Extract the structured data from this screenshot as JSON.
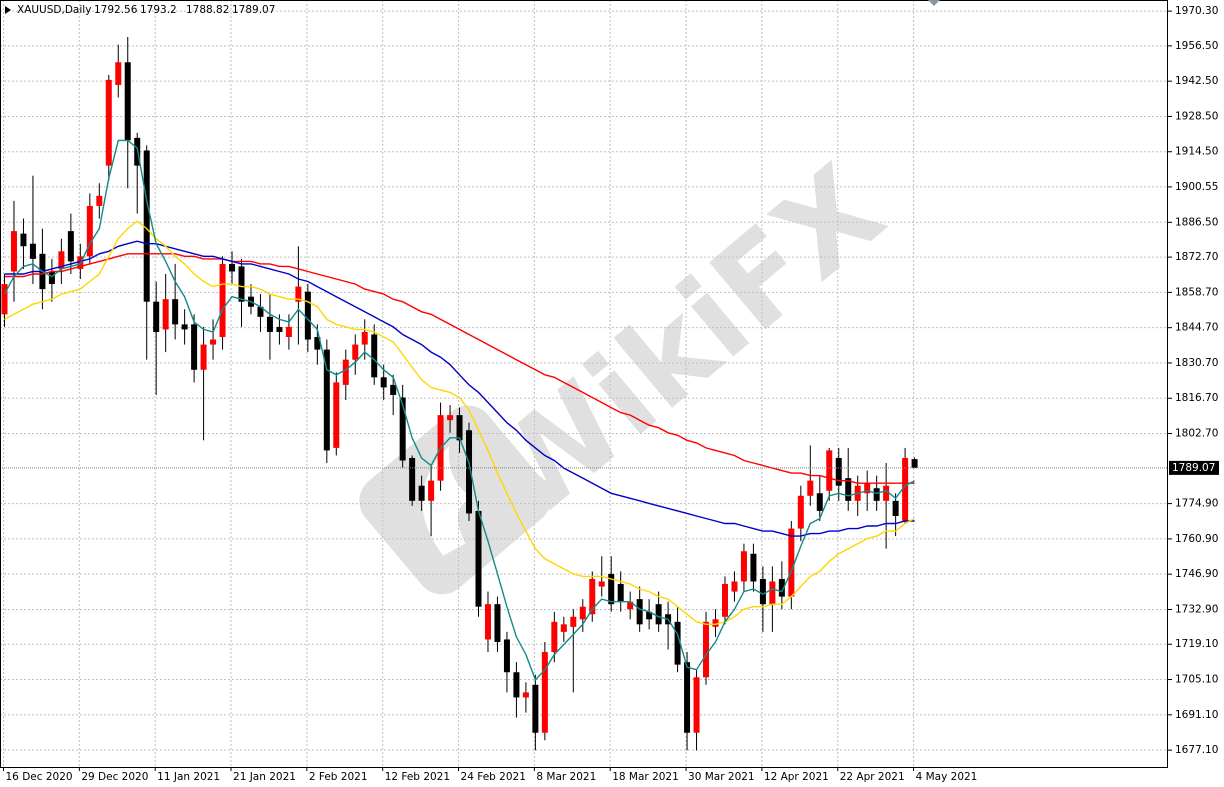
{
  "chart_data": {
    "type": "candlestick",
    "title": "XAUUSD,Daily",
    "watermark": "WikiFX",
    "categories": [
      "16 Dec 2020",
      null,
      null,
      null,
      null,
      null,
      null,
      null,
      "29 Dec 2020",
      null,
      null,
      null,
      null,
      null,
      null,
      null,
      "11 Jan 2021",
      null,
      null,
      null,
      null,
      null,
      null,
      null,
      "21 Jan 2021",
      null,
      null,
      null,
      null,
      null,
      null,
      null,
      "2 Feb 2021",
      null,
      null,
      null,
      null,
      null,
      null,
      null,
      "12 Feb 2021",
      null,
      null,
      null,
      null,
      null,
      null,
      null,
      "24 Feb 2021",
      null,
      null,
      null,
      null,
      null,
      null,
      null,
      "8 Mar 2021",
      null,
      null,
      null,
      null,
      null,
      null,
      null,
      "18 Mar 2021",
      null,
      null,
      null,
      null,
      null,
      null,
      null,
      "30 Mar 2021",
      null,
      null,
      null,
      null,
      null,
      null,
      null,
      "12 Apr 2021",
      null,
      null,
      null,
      null,
      null,
      null,
      null,
      "22 Apr 2021",
      null,
      null,
      null,
      null,
      null,
      null,
      null,
      "4 May 2021"
    ],
    "open": [
      1850,
      1867,
      1882,
      1878,
      1874,
      1867,
      1868,
      1883,
      1868,
      1873,
      1893,
      1909,
      1941,
      1950,
      1920,
      1915,
      1855,
      1844,
      1856,
      1846,
      1846,
      1828,
      1838,
      1841,
      1870,
      1869,
      1857,
      1853,
      1849,
      1845,
      1841,
      1855,
      1859,
      1841,
      1836,
      1797,
      1822,
      1832,
      1838,
      1842,
      1825,
      1822,
      1817,
      1793,
      1782,
      1776,
      1784,
      1808,
      1810,
      1804,
      1772,
      1721,
      1735,
      1721,
      1708,
      1698,
      1703,
      1684,
      1716,
      1724,
      1726,
      1729,
      1731,
      1742,
      1747,
      1743,
      1733,
      1737,
      1732,
      1735,
      1731,
      1728,
      1712,
      1684,
      1706,
      1726,
      1730,
      1740,
      1744,
      1755,
      1745,
      1735,
      1745,
      1738,
      1765,
      1778,
      1779,
      1780,
      1793,
      1785,
      1776,
      1779,
      1781,
      1776,
      1776,
      1768,
      1792.56
    ],
    "high": [
      1866,
      1895,
      1888,
      1905,
      1884,
      1872,
      1880,
      1890,
      1878,
      1898,
      1902,
      1945,
      1957,
      1960,
      1922,
      1917,
      1863,
      1866,
      1870,
      1852,
      1850,
      1845,
      1848,
      1873,
      1875,
      1872,
      1862,
      1858,
      1858,
      1850,
      1850,
      1877,
      1862,
      1846,
      1840,
      1827,
      1836,
      1842,
      1848,
      1846,
      1830,
      1826,
      1822,
      1794,
      1786,
      1790,
      1815,
      1814,
      1813,
      1807,
      1776,
      1740,
      1738,
      1724,
      1712,
      1704,
      1707,
      1720,
      1732,
      1730,
      1733,
      1737,
      1748,
      1754,
      1754,
      1748,
      1740,
      1742,
      1737,
      1740,
      1736,
      1734,
      1716,
      1709,
      1732,
      1733,
      1746,
      1748,
      1759,
      1759,
      1750,
      1750,
      1752,
      1768,
      1782,
      1798,
      1786,
      1797,
      1797,
      1797,
      1786,
      1788,
      1786,
      1791,
      1779,
      1797,
      1793.2
    ],
    "low": [
      1845,
      1855,
      1868,
      1862,
      1852,
      1855,
      1862,
      1866,
      1864,
      1870,
      1888,
      1903,
      1936,
      1900,
      1890,
      1832,
      1818,
      1835,
      1840,
      1838,
      1823,
      1800,
      1832,
      1836,
      1862,
      1845,
      1850,
      1843,
      1832,
      1838,
      1836,
      1838,
      1835,
      1830,
      1791,
      1794,
      1816,
      1826,
      1832,
      1822,
      1816,
      1810,
      1789,
      1774,
      1772,
      1762,
      1780,
      1803,
      1795,
      1768,
      1730,
      1716,
      1716,
      1700,
      1690,
      1692,
      1677,
      1681,
      1712,
      1720,
      1700,
      1724,
      1728,
      1738,
      1732,
      1732,
      1729,
      1724,
      1725,
      1724,
      1717,
      1708,
      1677,
      1677,
      1703,
      1722,
      1727,
      1736,
      1740,
      1740,
      1724,
      1724,
      1733,
      1733,
      1760,
      1774,
      1768,
      1776,
      1776,
      1772,
      1770,
      1772,
      1772,
      1757,
      1762,
      1767,
      1788.82
    ],
    "close": [
      1862,
      1883,
      1877,
      1872,
      1860,
      1862,
      1875,
      1871,
      1873,
      1893,
      1897,
      1943,
      1950,
      1919,
      1909,
      1855,
      1843,
      1856,
      1846,
      1844,
      1828,
      1838,
      1840,
      1870,
      1867,
      1855,
      1853,
      1849,
      1843,
      1843,
      1845,
      1861,
      1840,
      1836,
      1796,
      1823,
      1832,
      1838,
      1843,
      1825,
      1821,
      1818,
      1792,
      1776,
      1776,
      1784,
      1810,
      1810,
      1800,
      1771,
      1734,
      1735,
      1720,
      1708,
      1698,
      1700,
      1684,
      1716,
      1728,
      1727,
      1730,
      1734,
      1745,
      1744,
      1735,
      1736,
      1736,
      1727,
      1729,
      1727,
      1727,
      1711,
      1684,
      1706,
      1728,
      1729,
      1743,
      1744,
      1756,
      1744,
      1735,
      1744,
      1738,
      1765,
      1778,
      1784,
      1772,
      1796,
      1782,
      1776,
      1782,
      1783,
      1776,
      1782,
      1770,
      1793,
      1789.07
    ],
    "up_color": "#ff0000",
    "down_color": "#000000",
    "lines": [
      {
        "color": "#ff0000",
        "values": [
          1865,
          1865,
          1865,
          1866,
          1866,
          1867,
          1867,
          1868,
          1869,
          1870,
          1871,
          1872,
          1873,
          1874,
          1874,
          1874,
          1874,
          1874,
          1874,
          1873,
          1873,
          1872,
          1872,
          1872,
          1871,
          1871,
          1871,
          1870,
          1870,
          1869,
          1869,
          1868,
          1867,
          1866,
          1865,
          1864,
          1863,
          1862,
          1860,
          1859,
          1858,
          1856,
          1855,
          1853,
          1851,
          1850,
          1848,
          1846,
          1844,
          1842,
          1840,
          1838,
          1836,
          1834,
          1832,
          1830,
          1828,
          1826,
          1825,
          1823,
          1821,
          1819,
          1817,
          1815,
          1813,
          1811,
          1810,
          1808,
          1806,
          1805,
          1803,
          1802,
          1800,
          1799,
          1797,
          1796,
          1795,
          1794,
          1792,
          1791,
          1790,
          1789,
          1788,
          1787,
          1787,
          1786,
          1786,
          1785,
          1784,
          1784,
          1783,
          1783,
          1783,
          1783,
          1783,
          1783,
          1783
        ]
      },
      {
        "color": "#0000c8",
        "values": [
          1866,
          1866,
          1866,
          1867,
          1867,
          1868,
          1869,
          1870,
          1871,
          1872,
          1874,
          1875,
          1877,
          1878,
          1879,
          1878,
          1878,
          1877,
          1876,
          1875,
          1874,
          1873,
          1873,
          1872,
          1871,
          1870,
          1870,
          1869,
          1868,
          1867,
          1866,
          1864,
          1863,
          1861,
          1859,
          1857,
          1855,
          1853,
          1851,
          1849,
          1847,
          1845,
          1842,
          1840,
          1838,
          1835,
          1833,
          1830,
          1826,
          1822,
          1819,
          1815,
          1811,
          1807,
          1804,
          1800,
          1797,
          1794,
          1792,
          1789,
          1787,
          1785,
          1783,
          1781,
          1779,
          1778,
          1777,
          1776,
          1775,
          1774,
          1773,
          1772,
          1771,
          1770,
          1769,
          1768,
          1767,
          1767,
          1766,
          1765,
          1764,
          1764,
          1763,
          1762,
          1762,
          1763,
          1763,
          1764,
          1764,
          1765,
          1765,
          1766,
          1766,
          1767,
          1767,
          1768,
          1768
        ]
      },
      {
        "color": "#ffd700",
        "values": [
          1848,
          1850,
          1852,
          1854,
          1855,
          1856,
          1858,
          1859,
          1860,
          1863,
          1866,
          1873,
          1880,
          1884,
          1887,
          1884,
          1880,
          1877,
          1873,
          1870,
          1866,
          1863,
          1861,
          1862,
          1862,
          1861,
          1861,
          1860,
          1858,
          1857,
          1856,
          1856,
          1855,
          1853,
          1848,
          1846,
          1845,
          1844,
          1844,
          1843,
          1841,
          1839,
          1834,
          1829,
          1824,
          1821,
          1820,
          1819,
          1817,
          1812,
          1804,
          1796,
          1787,
          1779,
          1771,
          1764,
          1757,
          1753,
          1751,
          1749,
          1747,
          1746,
          1746,
          1746,
          1745,
          1744,
          1743,
          1741,
          1740,
          1738,
          1737,
          1734,
          1731,
          1728,
          1727,
          1727,
          1728,
          1730,
          1733,
          1734,
          1734,
          1735,
          1735,
          1738,
          1742,
          1746,
          1748,
          1752,
          1755,
          1757,
          1759,
          1761,
          1762,
          1764,
          1764,
          1767,
          1769
        ]
      },
      {
        "color": "#138a8a",
        "values": [
          1858,
          1865,
          1869,
          1870,
          1867,
          1865,
          1868,
          1869,
          1870,
          1878,
          1884,
          1904,
          1919,
          1919,
          1916,
          1895,
          1878,
          1871,
          1863,
          1857,
          1847,
          1844,
          1843,
          1852,
          1857,
          1856,
          1855,
          1853,
          1850,
          1848,
          1847,
          1852,
          1848,
          1844,
          1828,
          1826,
          1828,
          1831,
          1835,
          1832,
          1828,
          1825,
          1814,
          1801,
          1793,
          1790,
          1797,
          1801,
          1801,
          1791,
          1772,
          1760,
          1747,
          1734,
          1722,
          1715,
          1705,
          1709,
          1715,
          1719,
          1723,
          1727,
          1733,
          1737,
          1736,
          1736,
          1736,
          1733,
          1732,
          1730,
          1729,
          1723,
          1710,
          1709,
          1715,
          1720,
          1728,
          1733,
          1740,
          1741,
          1739,
          1741,
          1740,
          1748,
          1758,
          1767,
          1769,
          1778,
          1779,
          1778,
          1779,
          1780,
          1779,
          1780,
          1777,
          1782,
          1784
        ]
      }
    ],
    "ylim": [
      1670.4,
      1974.7
    ],
    "yticks": [
      {
        "value": 1970.3,
        "label": "1970.30"
      },
      {
        "value": 1956.5,
        "label": "1956.50"
      },
      {
        "value": 1942.5,
        "label": "1942.50"
      },
      {
        "value": 1928.5,
        "label": "1928.50"
      },
      {
        "value": 1914.5,
        "label": "1914.50"
      },
      1900.55,
      {
        "value": 1886.5,
        "label": "1886.50"
      },
      {
        "value": 1872.7,
        "label": "1872.70"
      },
      {
        "value": 1858.7,
        "label": "1858.70"
      },
      {
        "value": 1844.7,
        "label": "1844.70"
      },
      {
        "value": 1830.7,
        "label": "1830.70"
      },
      {
        "value": 1816.7,
        "label": "1816.70"
      },
      {
        "value": 1802.7,
        "label": "1802.70"
      },
      {
        "value": 1774.9,
        "label": "1774.90"
      },
      {
        "value": 1760.9,
        "label": "1760.90"
      },
      {
        "value": 1746.9,
        "label": "1746.90"
      },
      {
        "value": 1732.9,
        "label": "1732.90"
      },
      {
        "value": 1719.1,
        "label": "1719.10"
      },
      {
        "value": 1705.1,
        "label": "1705.10"
      },
      {
        "value": 1691.1,
        "label": "1691.10"
      },
      {
        "value": 1677.1,
        "label": "1677.10"
      }
    ],
    "grid": true
  }
}
